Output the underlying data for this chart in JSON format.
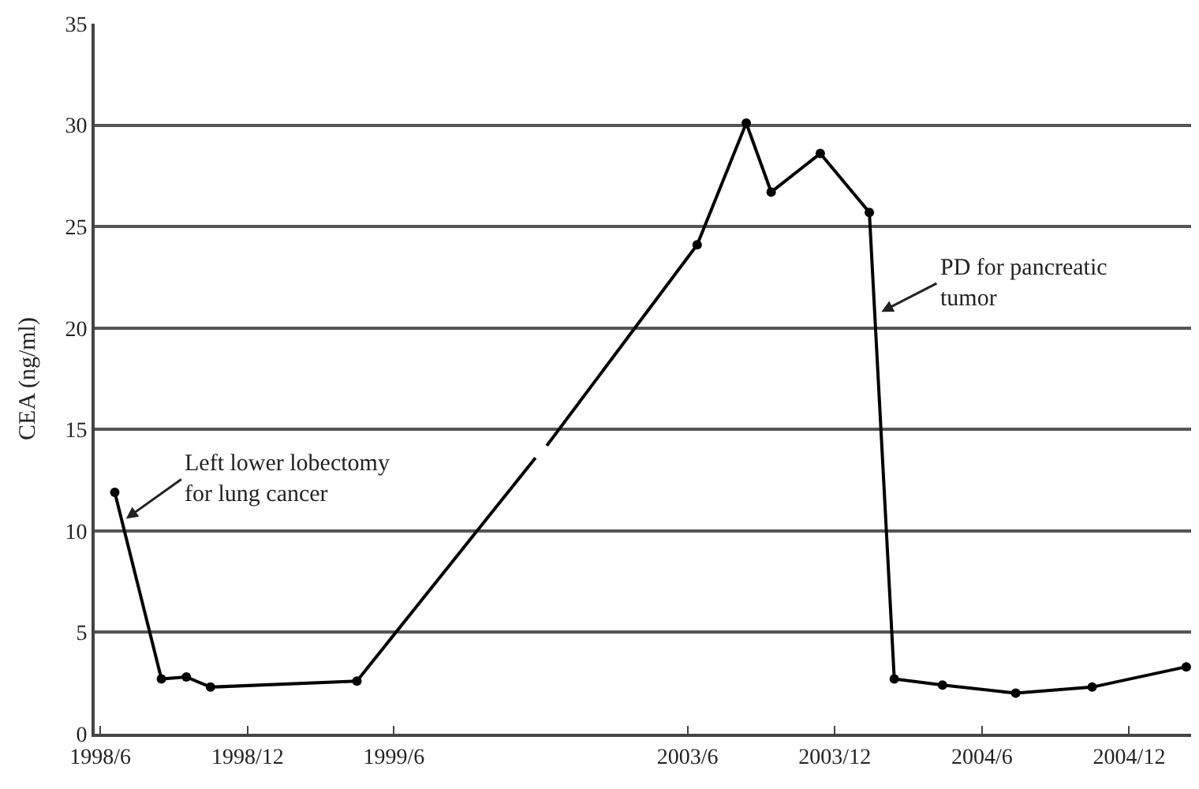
{
  "chart_data": [
    {
      "type": "line",
      "ylabel": "CEA (ng/ml)",
      "x": [
        "1998-06-19",
        "1998-08-16",
        "1998-09-16",
        "1998-10-16",
        "1999-04-16"
      ],
      "series": [
        {
          "color": "#000000",
          "values": [
            11.9,
            2.7,
            2.8,
            2.3,
            2.6
          ]
        },
        {
          "color": "#000000",
          "x": [
            "1999-04-16",
            "1999-11-24"
          ],
          "values": [
            2.6,
            13.6
          ],
          "marker": "none"
        }
      ],
      "xlim": [
        "1998-05-25",
        "1999-12-01"
      ],
      "xticks": [
        {
          "value": "1998-06",
          "label": "1998/6"
        },
        {
          "value": "1998-12",
          "label": "1998/12"
        },
        {
          "value": "1999-06",
          "label": "1999/6"
        }
      ],
      "ylim": [
        0,
        35
      ],
      "yticks": [
        0,
        5,
        10,
        15,
        20,
        25,
        30,
        35
      ],
      "grid": "y",
      "marker": "circle",
      "line_style": "solid",
      "annotations": [
        {
          "text": "Left lower lobectomy\nfor lung cancer",
          "x": "1998-07-03",
          "y": 10.6
        }
      ]
    },
    {
      "type": "line",
      "x": [
        "2003-06-13",
        "2003-08-13",
        "2003-09-13",
        "2003-11-13",
        "2004-01-13",
        "2004-02-13",
        "2004-04-13",
        "2004-07-13",
        "2004-10-16",
        "2005-02-10"
      ],
      "series": [
        {
          "color": "#000000",
          "values": [
            24.1,
            30.1,
            26.7,
            28.6,
            25.7,
            2.7,
            2.4,
            2.0,
            2.3,
            3.3
          ]
        },
        {
          "color": "#000000",
          "x": [
            "2002-12-08",
            "2003-06-13"
          ],
          "values": [
            14.2,
            24.1
          ],
          "marker": "none"
        }
      ],
      "xlim": [
        "2002-12-01",
        "2005-02-16"
      ],
      "xticks": [
        {
          "value": "2003-06",
          "label": "2003/6"
        },
        {
          "value": "2003-12",
          "label": "2003/12"
        },
        {
          "value": "2004-06",
          "label": "2004/6"
        },
        {
          "value": "2004-12",
          "label": "2004/12"
        }
      ],
      "ylim": [
        0,
        35
      ],
      "yticks": [
        0,
        5,
        10,
        15,
        20,
        25,
        30,
        35
      ],
      "tick_labels": "x",
      "grid": "y",
      "marker": "circle",
      "line_style": "solid",
      "annotations": [
        {
          "text": "PD for pancreatic\ntumor",
          "x": "2004-01-28",
          "y": 20.8
        }
      ]
    }
  ]
}
